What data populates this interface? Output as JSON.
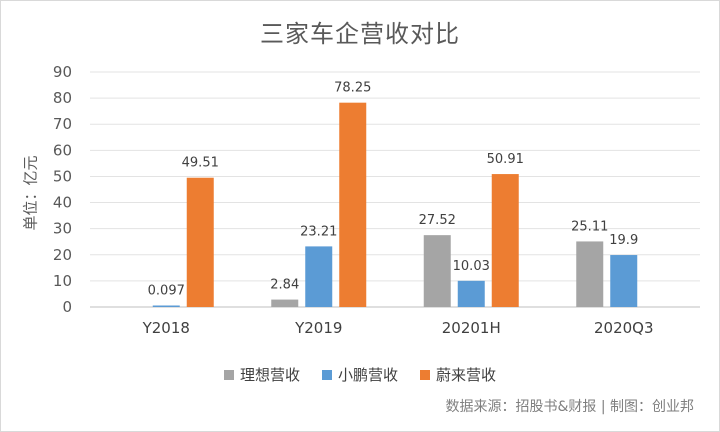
{
  "chart_data": {
    "type": "bar",
    "title": "三家车企营收对比",
    "ylabel": "单位：亿元",
    "xlabel": "",
    "ylim": [
      0,
      90
    ],
    "yticks": [
      0,
      10,
      20,
      30,
      40,
      50,
      60,
      70,
      80,
      90
    ],
    "grid": true,
    "legend_position": "bottom",
    "categories": [
      "Y2018",
      "Y2019",
      "20201H",
      "2020Q3"
    ],
    "series": [
      {
        "name": "理想营收",
        "color": "#a5a5a5",
        "values": [
          null,
          2.84,
          27.52,
          25.11
        ],
        "labels": [
          "",
          "2.84",
          "27.52",
          "25.11"
        ]
      },
      {
        "name": "小鹏营收",
        "color": "#5b9bd5",
        "values": [
          0.097,
          23.21,
          10.03,
          19.9
        ],
        "labels": [
          "0.097",
          "23.21",
          "10.03",
          "19.9"
        ]
      },
      {
        "name": "蔚来营收",
        "color": "#ed7d31",
        "values": [
          49.51,
          78.25,
          50.91,
          null
        ],
        "labels": [
          "49.51",
          "78.25",
          "50.91",
          ""
        ]
      }
    ]
  },
  "source": "数据来源：招股书&财报 | 制图：创业邦"
}
